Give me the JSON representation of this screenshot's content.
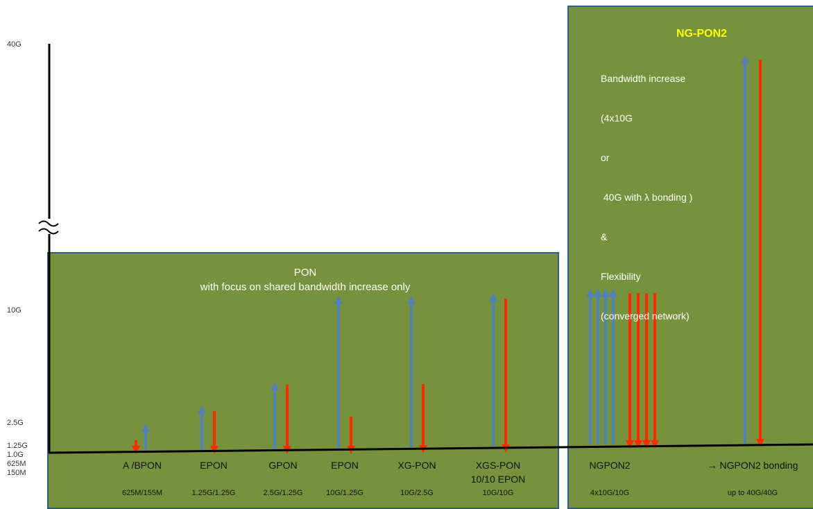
{
  "y_axis": {
    "labels": [
      "40G",
      "10G",
      "2.5G",
      "1.25G",
      "1.0G",
      "625M",
      "150M"
    ]
  },
  "pon_box": {
    "title_line1": "PON",
    "title_line2": "with focus on shared bandwidth increase only"
  },
  "ngpon2_box": {
    "title": "NG-PON2",
    "description_lines": [
      "Bandwidth increase",
      "(4x10G",
      "or",
      " 40G with λ bonding )",
      "&",
      "Flexibility",
      "(converged network)"
    ]
  },
  "technologies": [
    {
      "name": "A /BPON",
      "name2": "",
      "rate": "625M/155M"
    },
    {
      "name": "EPON",
      "name2": "",
      "rate": "1.25G/1.25G"
    },
    {
      "name": "GPON",
      "name2": "",
      "rate": "2.5G/1.25G"
    },
    {
      "name": "EPON",
      "name2": "",
      "rate": "10G/1.25G"
    },
    {
      "name": "XG-PON",
      "name2": "",
      "rate": "10G/2.5G"
    },
    {
      "name": "XGS-PON",
      "name2": "10/10 EPON",
      "rate": "10G/10G"
    },
    {
      "name": "NGPON2",
      "name2": "",
      "rate": "4x10G/10G"
    },
    {
      "name": "→ NGPON2 bonding",
      "name2": "",
      "rate": "up to 40G/40G"
    }
  ],
  "colors": {
    "upstream_arrow": "#4f81bd",
    "downstream_arrow": "#ff2a00",
    "box_fill": "#76923c",
    "box_border": "#2f5d8a",
    "ngpon2_title": "#ffff00"
  }
}
